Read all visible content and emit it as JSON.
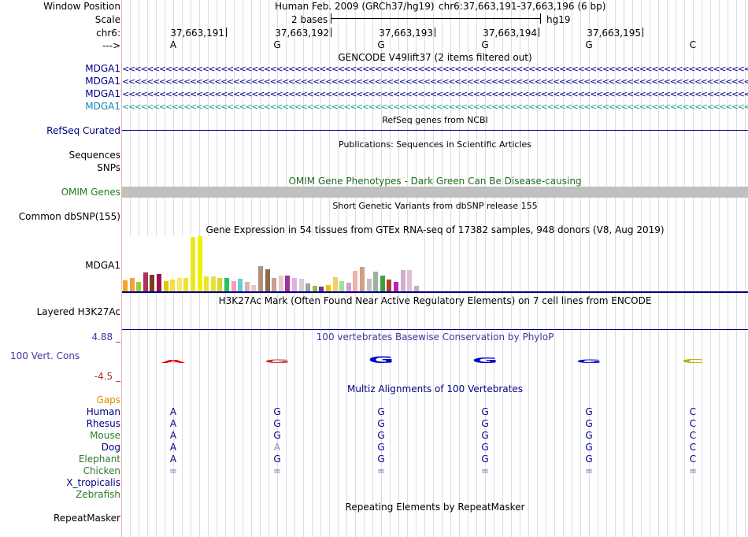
{
  "header": {
    "window_position_label": "Window Position",
    "scale_label": "Scale",
    "chrom_label": "chr6:",
    "arrow_label": "--->",
    "assembly": "Human Feb. 2009 (GRCh37/hg19)",
    "position": "chr6:37,663,191-37,663,196 (6 bp)",
    "scale_text": "2 bases",
    "db": "hg19",
    "coords": [
      "37,663,191",
      "37,663,192",
      "37,663,193",
      "37,663,194",
      "37,663,195"
    ],
    "bases": [
      "A",
      "G",
      "G",
      "G",
      "G",
      "C"
    ]
  },
  "tracks": {
    "gencode": {
      "title": "GENCODE V49lift37 (2 items filtered out)",
      "genes": [
        "MDGA1",
        "MDGA1",
        "MDGA1",
        "MDGA1"
      ]
    },
    "refseq": {
      "title": "RefSeq genes from NCBI",
      "label": "RefSeq Curated"
    },
    "publications": {
      "title": "Publications: Sequences in Scientific Articles",
      "label": "Sequences"
    },
    "snps": {
      "label": "SNPs"
    },
    "omim": {
      "title": "OMIM Gene Phenotypes - Dark Green Can Be Disease-causing",
      "label": "OMIM Genes"
    },
    "dbsnp": {
      "title": "Short Genetic Variants from dbSNP release 155",
      "label": "Common dbSNP(155)"
    },
    "gtex": {
      "title": "Gene Expression in 54 tissues from GTEx RNA-seq of 17382 samples, 948 donors (V8, Aug 2019)",
      "label": "MDGA1"
    },
    "h3k27ac": {
      "title": "H3K27Ac Mark (Often Found Near Active Regulatory Elements) on 7 cell lines from ENCODE",
      "label": "Layered H3K27Ac"
    },
    "phylop": {
      "title": "100 vertebrates Basewise Conservation by PhyloP",
      "label": "100 Vert. Cons",
      "max": "4.88 _",
      "min": "-4.5 _"
    },
    "multiz": {
      "title": "Multiz Alignments of 100 Vertebrates",
      "gaps_label": "Gaps",
      "species": [
        {
          "name": "Human",
          "color": "#000080",
          "seq": [
            "A",
            "G",
            "G",
            "G",
            "G",
            "C"
          ]
        },
        {
          "name": "Rhesus",
          "color": "#000080",
          "seq": [
            "A",
            "G",
            "G",
            "G",
            "G",
            "C"
          ]
        },
        {
          "name": "Mouse",
          "color": "#2a7a2a",
          "seq": [
            "A",
            "G",
            "G",
            "G",
            "G",
            "C"
          ]
        },
        {
          "name": "Dog",
          "color": "#000080",
          "seq": [
            "A",
            "A",
            "G",
            "G",
            "G",
            "C"
          ]
        },
        {
          "name": "Elephant",
          "color": "#2a7a2a",
          "seq": [
            "A",
            "G",
            "G",
            "G",
            "G",
            "C"
          ]
        },
        {
          "name": "Chicken",
          "color": "#2a7a2a",
          "seq": [
            "=",
            "=",
            "=",
            "=",
            "=",
            "="
          ]
        },
        {
          "name": "X_tropicalis",
          "color": "#000080",
          "seq": []
        },
        {
          "name": "Zebrafish",
          "color": "#2a7a2a",
          "seq": []
        }
      ]
    },
    "repeatmasker": {
      "title": "Repeating Elements by RepeatMasker",
      "label": "RepeatMasker"
    }
  },
  "chart_data": {
    "type": "bar",
    "title": "",
    "xlabel": "",
    "ylabel": "",
    "values": [
      14,
      17,
      12,
      24,
      21,
      22,
      13,
      15,
      17,
      17,
      69,
      70,
      19,
      19,
      17,
      17,
      13,
      16,
      12,
      8,
      32,
      28,
      17,
      20,
      20,
      17,
      16,
      10,
      7,
      6,
      8,
      18,
      13,
      11,
      26,
      31,
      16,
      25,
      20,
      15,
      12,
      27,
      27,
      7
    ],
    "colors": [
      "#f5a623",
      "#f0a040",
      "#9acd32",
      "#b03060",
      "#7a3d1a",
      "#a01050",
      "#e6c800",
      "#f0e040",
      "#f5e86a",
      "#f0e030",
      "#e8e820",
      "#f0f000",
      "#f0e030",
      "#e8e03a",
      "#d8d430",
      "#28c060",
      "#f0a0b0",
      "#60d0d0",
      "#d4b4b4",
      "#e8c8c8",
      "#b09080",
      "#8b6b4a",
      "#c8a090",
      "#e8c8c8",
      "#a030a0",
      "#e0b0e0",
      "#d0d0d0",
      "#a0a0a0",
      "#90c040",
      "#7030a0",
      "#f0c000",
      "#f0d060",
      "#a0e0a0",
      "#d0a0d0",
      "#f0b0b0",
      "#d0a080",
      "#c0c0c0",
      "#a0b0a0",
      "#40a040",
      "#b04030",
      "#c020c0",
      "#d0b0d0",
      "#e0c0d0",
      "#c0b0c0"
    ]
  },
  "phylop_logo": {
    "letters": [
      "A",
      "G",
      "G",
      "G",
      "G",
      "C"
    ],
    "colors": [
      "#e00000",
      "#c03030",
      "#0000cc",
      "#0000cc",
      "#0000cc",
      "#b8b000"
    ],
    "scores": [
      0.35,
      0.4,
      1.0,
      0.8,
      0.45,
      0.55
    ]
  }
}
